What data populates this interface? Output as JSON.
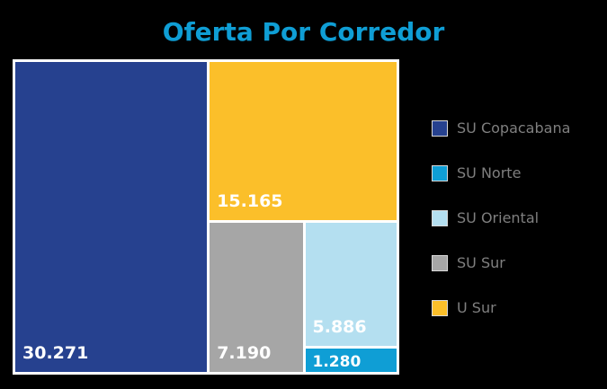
{
  "chart_data": {
    "type": "treemap",
    "title": "Oferta Por Corredor",
    "items": [
      {
        "name": "SU Copacabana",
        "value": 30271,
        "label": "30.271",
        "color": "#26418f"
      },
      {
        "name": "SU Norte",
        "value": 1280,
        "label": "1.280",
        "color": "#0f9ed5"
      },
      {
        "name": "SU Oriental",
        "value": 5886,
        "label": "5.886",
        "color": "#b4dff0"
      },
      {
        "name": "SU Sur",
        "value": 7190,
        "label": "7.190",
        "color": "#a6a6a6"
      },
      {
        "name": "U Sur",
        "value": 15165,
        "label": "15.165",
        "color": "#fbbf2a"
      }
    ],
    "legend": {
      "position": "right",
      "entries": [
        "SU Copacabana",
        "SU Norte",
        "SU Oriental",
        "SU Sur",
        "U Sur"
      ]
    }
  },
  "colors": {
    "background": "#000000",
    "title": "#0f9ed5",
    "border": "#ffffff",
    "label": "#ffffff",
    "legend_text": "#7f7f7f"
  }
}
